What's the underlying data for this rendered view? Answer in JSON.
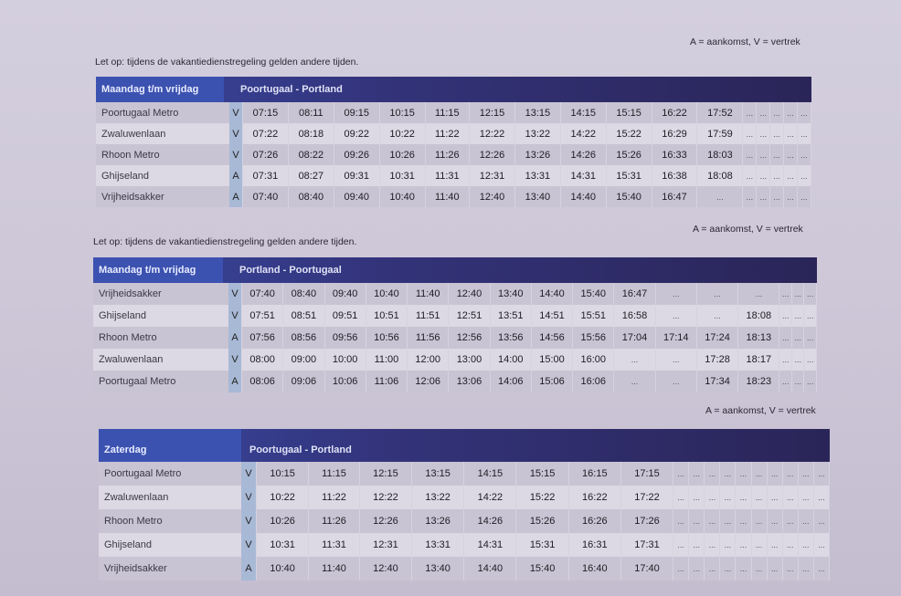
{
  "sections": [
    {
      "note": "Let op: tijdens de vakantiedienstregeling gelden andere tijden.",
      "legend": "A = aankomst, V = vertrek",
      "day": "Maandag t/m vrijdag",
      "route": "Poortugaal - Portland",
      "rows": [
        {
          "stop": "Poortugaal Metro",
          "av": "V",
          "times": [
            "07:15",
            "08:11",
            "09:15",
            "10:15",
            "11:15",
            "12:15",
            "13:15",
            "14:15",
            "15:15",
            "16:22",
            "17:52",
            "...",
            "...",
            "...",
            "...",
            "..."
          ]
        },
        {
          "stop": "Zwaluwenlaan",
          "av": "V",
          "times": [
            "07:22",
            "08:18",
            "09:22",
            "10:22",
            "11:22",
            "12:22",
            "13:22",
            "14:22",
            "15:22",
            "16:29",
            "17:59",
            "...",
            "...",
            "...",
            "...",
            "..."
          ]
        },
        {
          "stop": "Rhoon Metro",
          "av": "V",
          "times": [
            "07:26",
            "08:22",
            "09:26",
            "10:26",
            "11:26",
            "12:26",
            "13:26",
            "14:26",
            "15:26",
            "16:33",
            "18:03",
            "...",
            "...",
            "...",
            "...",
            "..."
          ]
        },
        {
          "stop": "Ghijseland",
          "av": "A",
          "times": [
            "07:31",
            "08:27",
            "09:31",
            "10:31",
            "11:31",
            "12:31",
            "13:31",
            "14:31",
            "15:31",
            "16:38",
            "18:08",
            "...",
            "...",
            "...",
            "...",
            "..."
          ]
        },
        {
          "stop": "Vrijheidsakker",
          "av": "A",
          "times": [
            "07:40",
            "08:40",
            "09:40",
            "10:40",
            "11:40",
            "12:40",
            "13:40",
            "14:40",
            "15:40",
            "16:47",
            "...",
            "...",
            "...",
            "...",
            "...",
            "..."
          ]
        }
      ]
    },
    {
      "note": "Let op: tijdens de vakantiedienstregeling gelden andere tijden.",
      "legend": "A = aankomst, V = vertrek",
      "day": "Maandag t/m vrijdag",
      "route": "Portland - Poortugaal",
      "rows": [
        {
          "stop": "Vrijheidsakker",
          "av": "V",
          "times": [
            "07:40",
            "08:40",
            "09:40",
            "10:40",
            "11:40",
            "12:40",
            "13:40",
            "14:40",
            "15:40",
            "16:47",
            "...",
            "...",
            "...",
            "...",
            "...",
            "..."
          ]
        },
        {
          "stop": "Ghijseland",
          "av": "V",
          "times": [
            "07:51",
            "08:51",
            "09:51",
            "10:51",
            "11:51",
            "12:51",
            "13:51",
            "14:51",
            "15:51",
            "16:58",
            "...",
            "...",
            "18:08",
            "...",
            "...",
            "..."
          ]
        },
        {
          "stop": "Rhoon Metro",
          "av": "A",
          "times": [
            "07:56",
            "08:56",
            "09:56",
            "10:56",
            "11:56",
            "12:56",
            "13:56",
            "14:56",
            "15:56",
            "17:04",
            "17:14",
            "17:24",
            "18:13",
            "...",
            "...",
            "..."
          ]
        },
        {
          "stop": "Zwaluwenlaan",
          "av": "V",
          "times": [
            "08:00",
            "09:00",
            "10:00",
            "11:00",
            "12:00",
            "13:00",
            "14:00",
            "15:00",
            "16:00",
            "...",
            "...",
            "17:28",
            "18:17",
            "...",
            "...",
            "..."
          ]
        },
        {
          "stop": "Poortugaal Metro",
          "av": "A",
          "times": [
            "08:06",
            "09:06",
            "10:06",
            "11:06",
            "12:06",
            "13:06",
            "14:06",
            "15:06",
            "16:06",
            "...",
            "...",
            "17:34",
            "18:23",
            "...",
            "...",
            "..."
          ]
        }
      ]
    },
    {
      "note": "",
      "legend": "A = aankomst, V = vertrek",
      "day": "Zaterdag",
      "route": "Poortugaal - Portland",
      "rows": [
        {
          "stop": "Poortugaal Metro",
          "av": "V",
          "times": [
            "10:15",
            "11:15",
            "12:15",
            "13:15",
            "14:15",
            "15:15",
            "16:15",
            "17:15",
            "...",
            "...",
            "...",
            "...",
            "...",
            "...",
            "...",
            "...",
            "...",
            "..."
          ]
        },
        {
          "stop": "Zwaluwenlaan",
          "av": "V",
          "times": [
            "10:22",
            "11:22",
            "12:22",
            "13:22",
            "14:22",
            "15:22",
            "16:22",
            "17:22",
            "...",
            "...",
            "...",
            "...",
            "...",
            "...",
            "...",
            "...",
            "...",
            "..."
          ]
        },
        {
          "stop": "Rhoon Metro",
          "av": "V",
          "times": [
            "10:26",
            "11:26",
            "12:26",
            "13:26",
            "14:26",
            "15:26",
            "16:26",
            "17:26",
            "...",
            "...",
            "...",
            "...",
            "...",
            "...",
            "...",
            "...",
            "...",
            "..."
          ]
        },
        {
          "stop": "Ghijseland",
          "av": "V",
          "times": [
            "10:31",
            "11:31",
            "12:31",
            "13:31",
            "14:31",
            "15:31",
            "16:31",
            "17:31",
            "...",
            "...",
            "...",
            "...",
            "...",
            "...",
            "...",
            "...",
            "...",
            "..."
          ]
        },
        {
          "stop": "Vrijheidsakker",
          "av": "A",
          "times": [
            "10:40",
            "11:40",
            "12:40",
            "13:40",
            "14:40",
            "15:40",
            "16:40",
            "17:40",
            "...",
            "...",
            "...",
            "...",
            "...",
            "...",
            "...",
            "...",
            "...",
            "..."
          ]
        }
      ]
    }
  ]
}
